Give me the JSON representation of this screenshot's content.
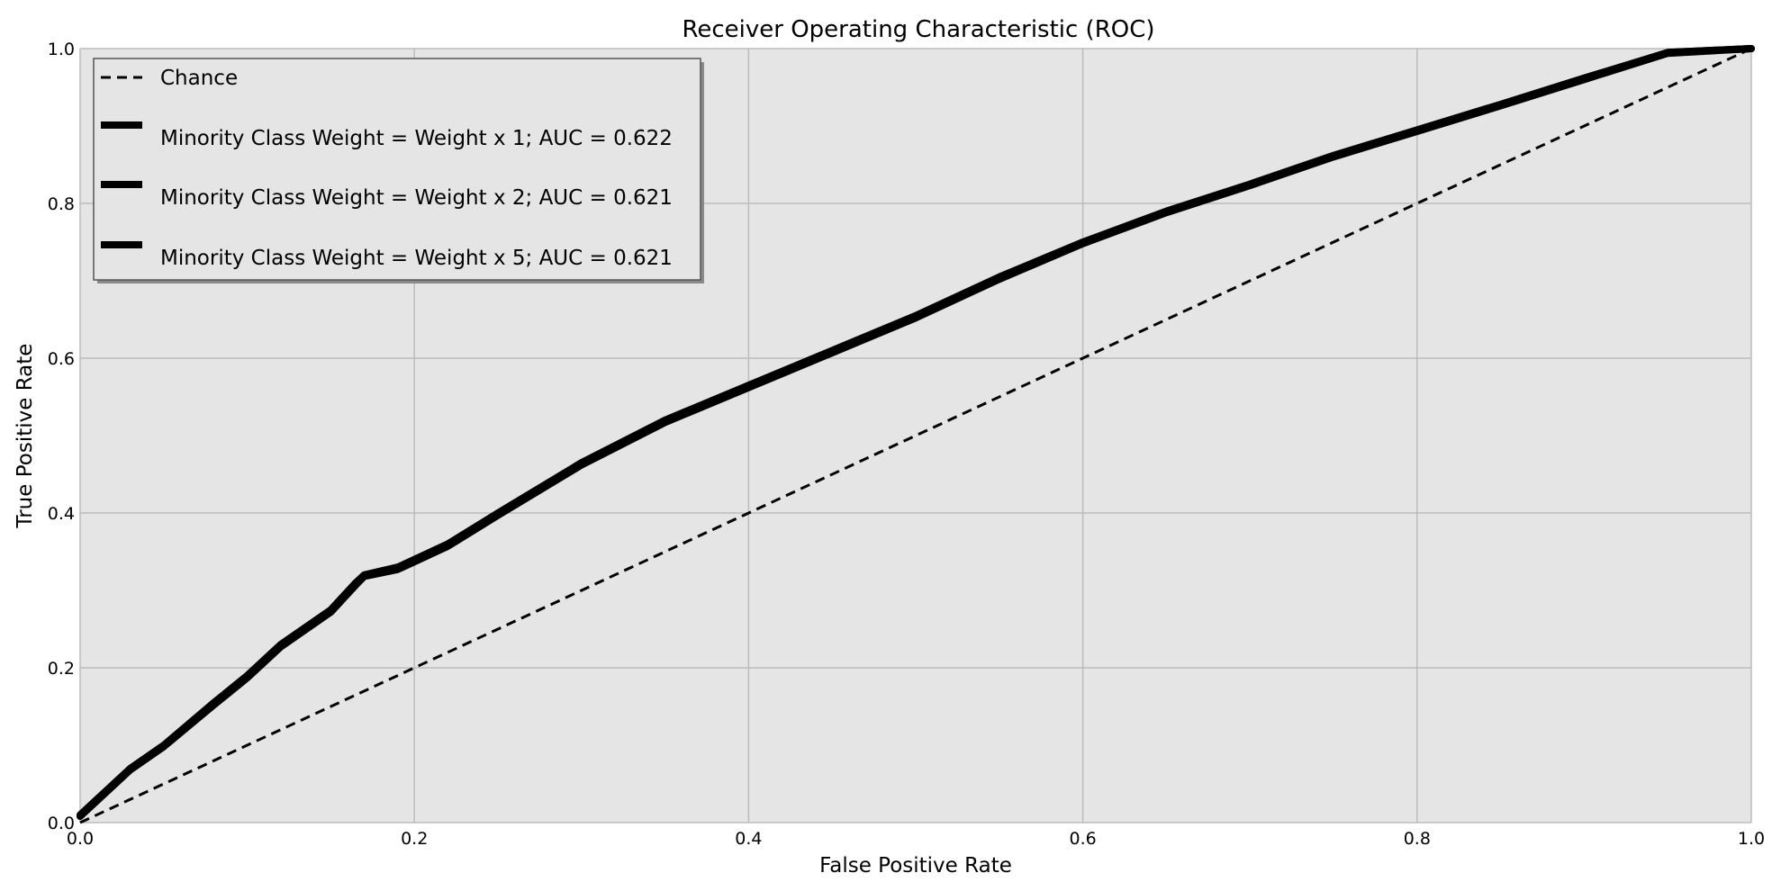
{
  "chart_data": {
    "type": "line",
    "title": "Receiver Operating Characteristic (ROC)",
    "xlabel": "False Positive Rate",
    "ylabel": "True Positive Rate",
    "xlim": [
      0.0,
      1.0
    ],
    "ylim": [
      0.0,
      1.0
    ],
    "x_ticks": [
      "0.0",
      "0.2",
      "0.4",
      "0.6",
      "0.8",
      "1.0"
    ],
    "y_ticks": [
      "0.0",
      "0.2",
      "0.4",
      "0.6",
      "0.8",
      "1.0"
    ],
    "grid": true,
    "legend_position": "upper-left",
    "colors": {
      "plot_background": "#e5e5e5",
      "grid": "#bcbcbc",
      "line": "#000000",
      "legend_background": "#e5e5e5",
      "legend_border": "#555555"
    },
    "series": [
      {
        "name": "Chance",
        "style": "dashed",
        "x": [
          0.0,
          1.0
        ],
        "y": [
          0.0,
          1.0
        ]
      },
      {
        "name": "Minority Class Weight = Weight x 1; AUC = 0.622",
        "style": "solid",
        "x": [
          0.0,
          0.02,
          0.03,
          0.05,
          0.08,
          0.1,
          0.12,
          0.15,
          0.165,
          0.17,
          0.19,
          0.2,
          0.22,
          0.25,
          0.3,
          0.35,
          0.4,
          0.45,
          0.5,
          0.55,
          0.6,
          0.65,
          0.7,
          0.75,
          0.8,
          0.85,
          0.9,
          0.95,
          1.0
        ],
        "y": [
          0.01,
          0.05,
          0.07,
          0.1,
          0.155,
          0.19,
          0.23,
          0.275,
          0.31,
          0.32,
          0.33,
          0.34,
          0.36,
          0.4,
          0.465,
          0.52,
          0.565,
          0.61,
          0.655,
          0.705,
          0.75,
          0.79,
          0.825,
          0.862,
          0.895,
          0.928,
          0.962,
          0.995,
          1.0
        ]
      },
      {
        "name": "Minority Class Weight = Weight x 2; AUC = 0.621",
        "style": "solid",
        "x": [
          0.0,
          0.02,
          0.03,
          0.05,
          0.08,
          0.1,
          0.12,
          0.15,
          0.165,
          0.17,
          0.19,
          0.2,
          0.22,
          0.25,
          0.3,
          0.35,
          0.4,
          0.45,
          0.5,
          0.55,
          0.6,
          0.65,
          0.7,
          0.75,
          0.8,
          0.85,
          0.9,
          0.95,
          1.0
        ],
        "y": [
          0.008,
          0.048,
          0.068,
          0.098,
          0.152,
          0.187,
          0.227,
          0.272,
          0.307,
          0.318,
          0.327,
          0.337,
          0.357,
          0.397,
          0.462,
          0.517,
          0.562,
          0.607,
          0.652,
          0.702,
          0.748,
          0.788,
          0.823,
          0.86,
          0.893,
          0.926,
          0.96,
          0.994,
          1.0
        ]
      },
      {
        "name": "Minority Class Weight = Weight x 5; AUC = 0.621",
        "style": "solid",
        "x": [
          0.0,
          0.02,
          0.03,
          0.05,
          0.08,
          0.1,
          0.12,
          0.15,
          0.165,
          0.17,
          0.19,
          0.2,
          0.22,
          0.25,
          0.3,
          0.35,
          0.4,
          0.45,
          0.5,
          0.55,
          0.6,
          0.65,
          0.7,
          0.75,
          0.8,
          0.85,
          0.9,
          0.95,
          1.0
        ],
        "y": [
          0.009,
          0.049,
          0.069,
          0.099,
          0.153,
          0.188,
          0.228,
          0.273,
          0.308,
          0.319,
          0.328,
          0.338,
          0.358,
          0.398,
          0.463,
          0.518,
          0.563,
          0.608,
          0.653,
          0.703,
          0.749,
          0.789,
          0.824,
          0.861,
          0.894,
          0.927,
          0.961,
          0.995,
          1.0
        ]
      }
    ]
  }
}
